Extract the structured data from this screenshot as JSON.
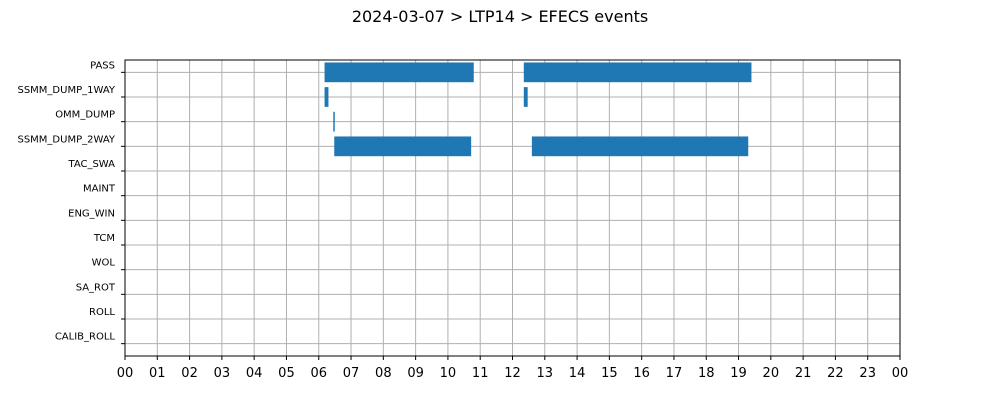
{
  "chart_data": {
    "type": "bar",
    "orientation": "horizontal-timeline",
    "title": "2024-03-07 > LTP14 > EFECS events",
    "xlabel": "",
    "ylabel": "",
    "xlim": [
      0,
      24
    ],
    "grid": true,
    "bar_color": "#1f77b4",
    "categories": [
      "PASS",
      "SSMM_DUMP_1WAY",
      "OMM_DUMP",
      "SSMM_DUMP_2WAY",
      "TAC_SWA",
      "MAINT",
      "ENG_WIN",
      "TCM",
      "WOL",
      "SA_ROT",
      "ROLL",
      "CALIB_ROLL"
    ],
    "x_tick_labels": [
      "00",
      "01",
      "02",
      "03",
      "04",
      "05",
      "06",
      "07",
      "08",
      "09",
      "10",
      "11",
      "12",
      "13",
      "14",
      "15",
      "16",
      "17",
      "18",
      "19",
      "20",
      "21",
      "22",
      "23",
      "00"
    ],
    "events": [
      {
        "category": "PASS",
        "start": 6.18,
        "end": 10.8
      },
      {
        "category": "PASS",
        "start": 12.35,
        "end": 19.4
      },
      {
        "category": "SSMM_DUMP_1WAY",
        "start": 6.18,
        "end": 6.3
      },
      {
        "category": "SSMM_DUMP_1WAY",
        "start": 12.35,
        "end": 12.47
      },
      {
        "category": "OMM_DUMP",
        "start": 6.45,
        "end": 6.49
      },
      {
        "category": "SSMM_DUMP_2WAY",
        "start": 6.48,
        "end": 10.72
      },
      {
        "category": "SSMM_DUMP_2WAY",
        "start": 12.6,
        "end": 19.3
      }
    ]
  }
}
